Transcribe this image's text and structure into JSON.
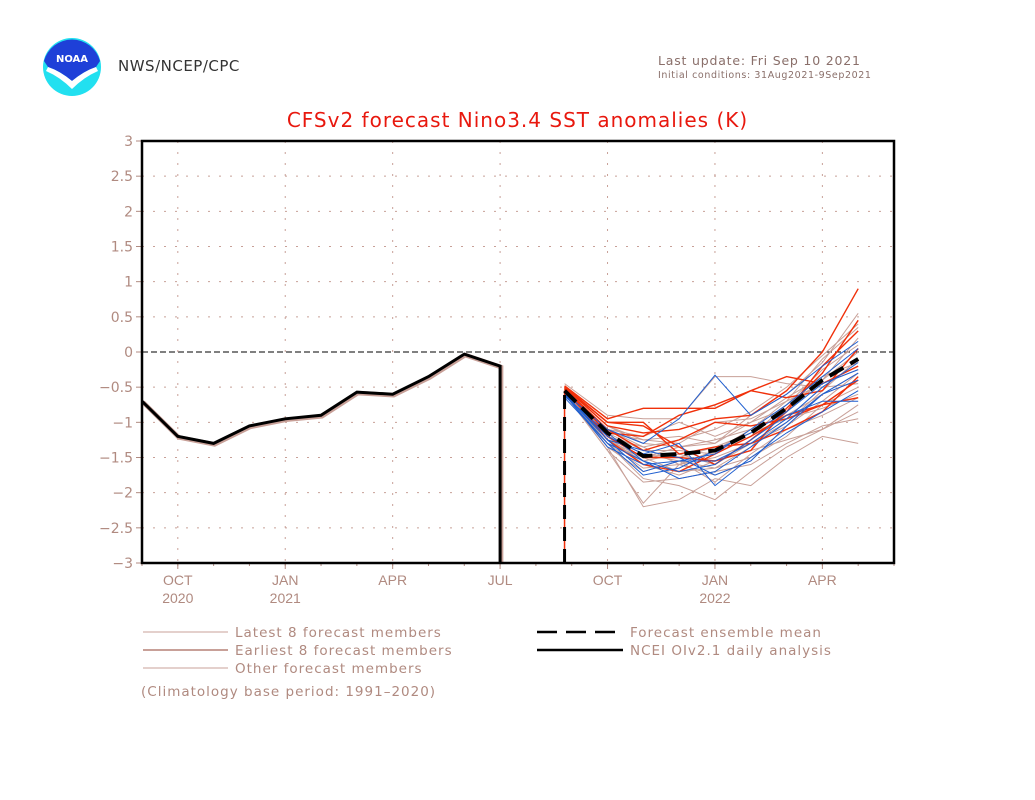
{
  "header": {
    "agency": "NWS/NCEP/CPC",
    "logo_text": "NOAA",
    "last_update": "Last update: Fri Sep 10 2021",
    "initial_conditions": "Initial conditions: 31Aug2021-9Sep2021"
  },
  "colors": {
    "title": "#e8180e",
    "axis_text": "#b08a80",
    "latest_members": "#1f5fd0",
    "earliest_members": "#f0300a",
    "other_members": "#c8a098",
    "ensemble_mean": "#000000",
    "analysis": "#000000"
  },
  "chart_data": {
    "type": "line",
    "title": "CFSv2 forecast Nino3.4 SST anomalies (K)",
    "xlabel": "",
    "ylabel": "",
    "ylim": [
      -3,
      3
    ],
    "yticks": [
      "3",
      "2.5",
      "2",
      "1.5",
      "1",
      "0.5",
      "0",
      "-0.5",
      "-1",
      "-1.5",
      "-2",
      "-2.5",
      "-3"
    ],
    "ytick_values": [
      3,
      2.5,
      2,
      1.5,
      1,
      0.5,
      0,
      -0.5,
      -1,
      -1.5,
      -2,
      -2.5,
      -3
    ],
    "x_axis_unit": "months since Sep 2020",
    "xlim": [
      0,
      21
    ],
    "xticks": [
      {
        "month": 1,
        "label": "OCT",
        "year": "2020"
      },
      {
        "month": 4,
        "label": "JAN",
        "year": "2021"
      },
      {
        "month": 7,
        "label": "APR",
        "year": ""
      },
      {
        "month": 10,
        "label": "JUL",
        "year": ""
      },
      {
        "month": 13,
        "label": "OCT",
        "year": ""
      },
      {
        "month": 16,
        "label": "JAN",
        "year": "2022"
      },
      {
        "month": 19,
        "label": "APR",
        "year": ""
      }
    ],
    "grid": true,
    "zero_line": true,
    "series": [
      {
        "name": "NCEI OIv2.1 daily analysis",
        "style": "solid-thick",
        "x": [
          0,
          1,
          2,
          3,
          4,
          5,
          6,
          7,
          8,
          9,
          10
        ],
        "y": [
          -0.7,
          -1.2,
          -1.3,
          -1.05,
          -0.95,
          -0.9,
          -0.57,
          -0.6,
          -0.35,
          -0.03,
          -0.2
        ]
      },
      {
        "name": "Forecast ensemble mean",
        "style": "dashed-thick",
        "x": [
          11.8,
          13,
          14,
          15,
          16,
          17,
          18,
          19,
          20
        ],
        "y": [
          -0.55,
          -1.15,
          -1.48,
          -1.45,
          -1.4,
          -1.15,
          -0.8,
          -0.4,
          -0.1
        ]
      }
    ],
    "member_groups": [
      {
        "name": "Latest 8 forecast members",
        "color_key": "latest_members",
        "x": [
          11.8,
          13,
          14,
          15,
          16,
          17,
          18,
          19,
          20
        ],
        "members": [
          [
            -0.6,
            -1.25,
            -1.7,
            -1.55,
            -1.45,
            -1.1,
            -0.75,
            -0.35,
            0.05
          ],
          [
            -0.65,
            -1.3,
            -1.55,
            -1.8,
            -1.7,
            -1.35,
            -1.0,
            -0.6,
            -0.4
          ],
          [
            -0.62,
            -1.2,
            -1.45,
            -1.3,
            -1.9,
            -1.5,
            -1.15,
            -0.85,
            -0.55
          ],
          [
            -0.58,
            -1.1,
            -1.3,
            -0.95,
            -0.33,
            -0.9,
            -0.6,
            -0.2,
            0.15
          ],
          [
            -0.6,
            -1.35,
            -1.6,
            -1.55,
            -1.55,
            -1.3,
            -0.95,
            -0.5,
            -0.15
          ],
          [
            -0.63,
            -1.15,
            -1.55,
            -1.7,
            -1.6,
            -1.25,
            -0.9,
            -0.7,
            -0.7
          ],
          [
            -0.59,
            -1.25,
            -1.4,
            -1.5,
            -1.75,
            -1.55,
            -1.05,
            -0.6,
            -0.3
          ],
          [
            -0.61,
            -1.3,
            -1.75,
            -1.65,
            -1.4,
            -1.15,
            -0.85,
            -0.45,
            -0.25
          ]
        ]
      },
      {
        "name": "Earliest 8 forecast members",
        "color_key": "earliest_members",
        "x": [
          11.8,
          13,
          14,
          15,
          16,
          17,
          18,
          19,
          20
        ],
        "members": [
          [
            -0.5,
            -1.05,
            -1.15,
            -1.1,
            -0.95,
            -0.9,
            -0.55,
            0.0,
            0.9
          ],
          [
            -0.48,
            -0.95,
            -0.8,
            -0.8,
            -0.8,
            -0.55,
            -0.35,
            -0.45,
            -0.2
          ],
          [
            -0.52,
            -1.1,
            -1.4,
            -1.25,
            -1.0,
            -1.05,
            -0.95,
            -0.75,
            -0.65
          ],
          [
            -0.5,
            -1.0,
            -1.0,
            -1.45,
            -1.35,
            -1.3,
            -1.1,
            -0.85,
            -0.35
          ],
          [
            -0.55,
            -1.2,
            -1.5,
            -1.5,
            -1.55,
            -1.4,
            -0.8,
            -0.3,
            0.45
          ],
          [
            -0.53,
            -1.15,
            -1.2,
            -0.9,
            -0.75,
            -0.55,
            -0.65,
            -0.55,
            0.05
          ],
          [
            -0.49,
            -1.0,
            -1.05,
            -1.35,
            -1.6,
            -1.25,
            -0.85,
            -0.2,
            0.3
          ],
          [
            -0.51,
            -1.25,
            -1.6,
            -1.7,
            -1.45,
            -1.2,
            -0.9,
            -0.75,
            -0.4
          ]
        ]
      },
      {
        "name": "Other forecast members",
        "color_key": "other_members",
        "x": [
          11.8,
          13,
          14,
          15,
          16,
          17,
          18,
          19,
          20
        ],
        "members": [
          [
            -0.45,
            -0.9,
            -0.95,
            -0.95,
            -0.35,
            -0.35,
            -0.45,
            -0.5,
            -0.45
          ],
          [
            -0.55,
            -1.35,
            -2.2,
            -2.1,
            -1.8,
            -1.9,
            -1.5,
            -1.2,
            -1.3
          ],
          [
            -0.6,
            -1.4,
            -2.15,
            -1.6,
            -1.75,
            -1.55,
            -1.05,
            -0.6,
            -0.3
          ],
          [
            -0.57,
            -1.3,
            -1.8,
            -1.9,
            -2.1,
            -1.7,
            -1.35,
            -1.1,
            -0.75
          ],
          [
            -0.52,
            -1.15,
            -1.25,
            -1.2,
            -1.3,
            -0.9,
            -0.6,
            -0.15,
            0.55
          ],
          [
            -0.54,
            -1.2,
            -1.35,
            -1.6,
            -1.4,
            -1.1,
            -0.7,
            -0.1,
            0.35
          ],
          [
            -0.56,
            -1.1,
            -1.2,
            -1.0,
            -1.2,
            -1.0,
            -0.8,
            -0.4,
            0.2
          ],
          [
            -0.58,
            -1.25,
            -1.5,
            -1.7,
            -1.65,
            -1.5,
            -1.2,
            -0.75,
            -0.5
          ],
          [
            -0.5,
            -1.05,
            -1.3,
            -1.35,
            -1.25,
            -1.1,
            -0.9,
            -0.6,
            -0.4
          ],
          [
            -0.53,
            -1.3,
            -1.65,
            -1.6,
            -1.5,
            -1.3,
            -1.0,
            -0.55,
            -0.1
          ],
          [
            -0.55,
            -1.2,
            -1.45,
            -1.5,
            -1.35,
            -1.15,
            -0.95,
            -0.8,
            -0.6
          ],
          [
            -0.6,
            -1.35,
            -1.7,
            -1.55,
            -1.85,
            -1.45,
            -1.1,
            -0.9,
            -0.65
          ],
          [
            -0.52,
            -1.1,
            -1.35,
            -1.25,
            -1.1,
            -0.85,
            -0.5,
            -0.05,
            0.4
          ],
          [
            -0.57,
            -1.25,
            -1.55,
            -1.45,
            -1.6,
            -1.3,
            -1.05,
            -0.7,
            -0.3
          ],
          [
            -0.5,
            -1.15,
            -1.4,
            -1.4,
            -1.45,
            -1.2,
            -0.75,
            -0.25,
            0.1
          ],
          [
            -0.54,
            -1.2,
            -1.6,
            -1.75,
            -1.55,
            -1.4,
            -1.25,
            -1.1,
            -0.85
          ],
          [
            -0.56,
            -1.3,
            -1.5,
            -1.35,
            -1.3,
            -1.0,
            -0.65,
            -0.35,
            -0.15
          ],
          [
            -0.59,
            -1.4,
            -1.85,
            -1.8,
            -1.7,
            -1.6,
            -1.3,
            -1.05,
            -0.95
          ],
          [
            -0.51,
            -1.05,
            -1.25,
            -1.3,
            -1.0,
            -0.95,
            -0.7,
            -0.45,
            -0.25
          ],
          [
            -0.53,
            -1.2,
            -1.45,
            -1.55,
            -1.65,
            -1.35,
            -0.85,
            -0.4,
            0.0
          ]
        ]
      }
    ],
    "legend": {
      "placement": "bottom",
      "entries": [
        {
          "label": "Latest 8 forecast members",
          "style": "thin"
        },
        {
          "label": "Earliest 8 forecast members",
          "style": "medium"
        },
        {
          "label": "Other forecast members",
          "style": "thin"
        },
        {
          "label": "Forecast ensemble mean",
          "style": "dashed"
        },
        {
          "label": "NCEI OIv2.1 daily analysis",
          "style": "solid"
        }
      ],
      "note": "(Climatology base period: 1991–2020)"
    }
  }
}
